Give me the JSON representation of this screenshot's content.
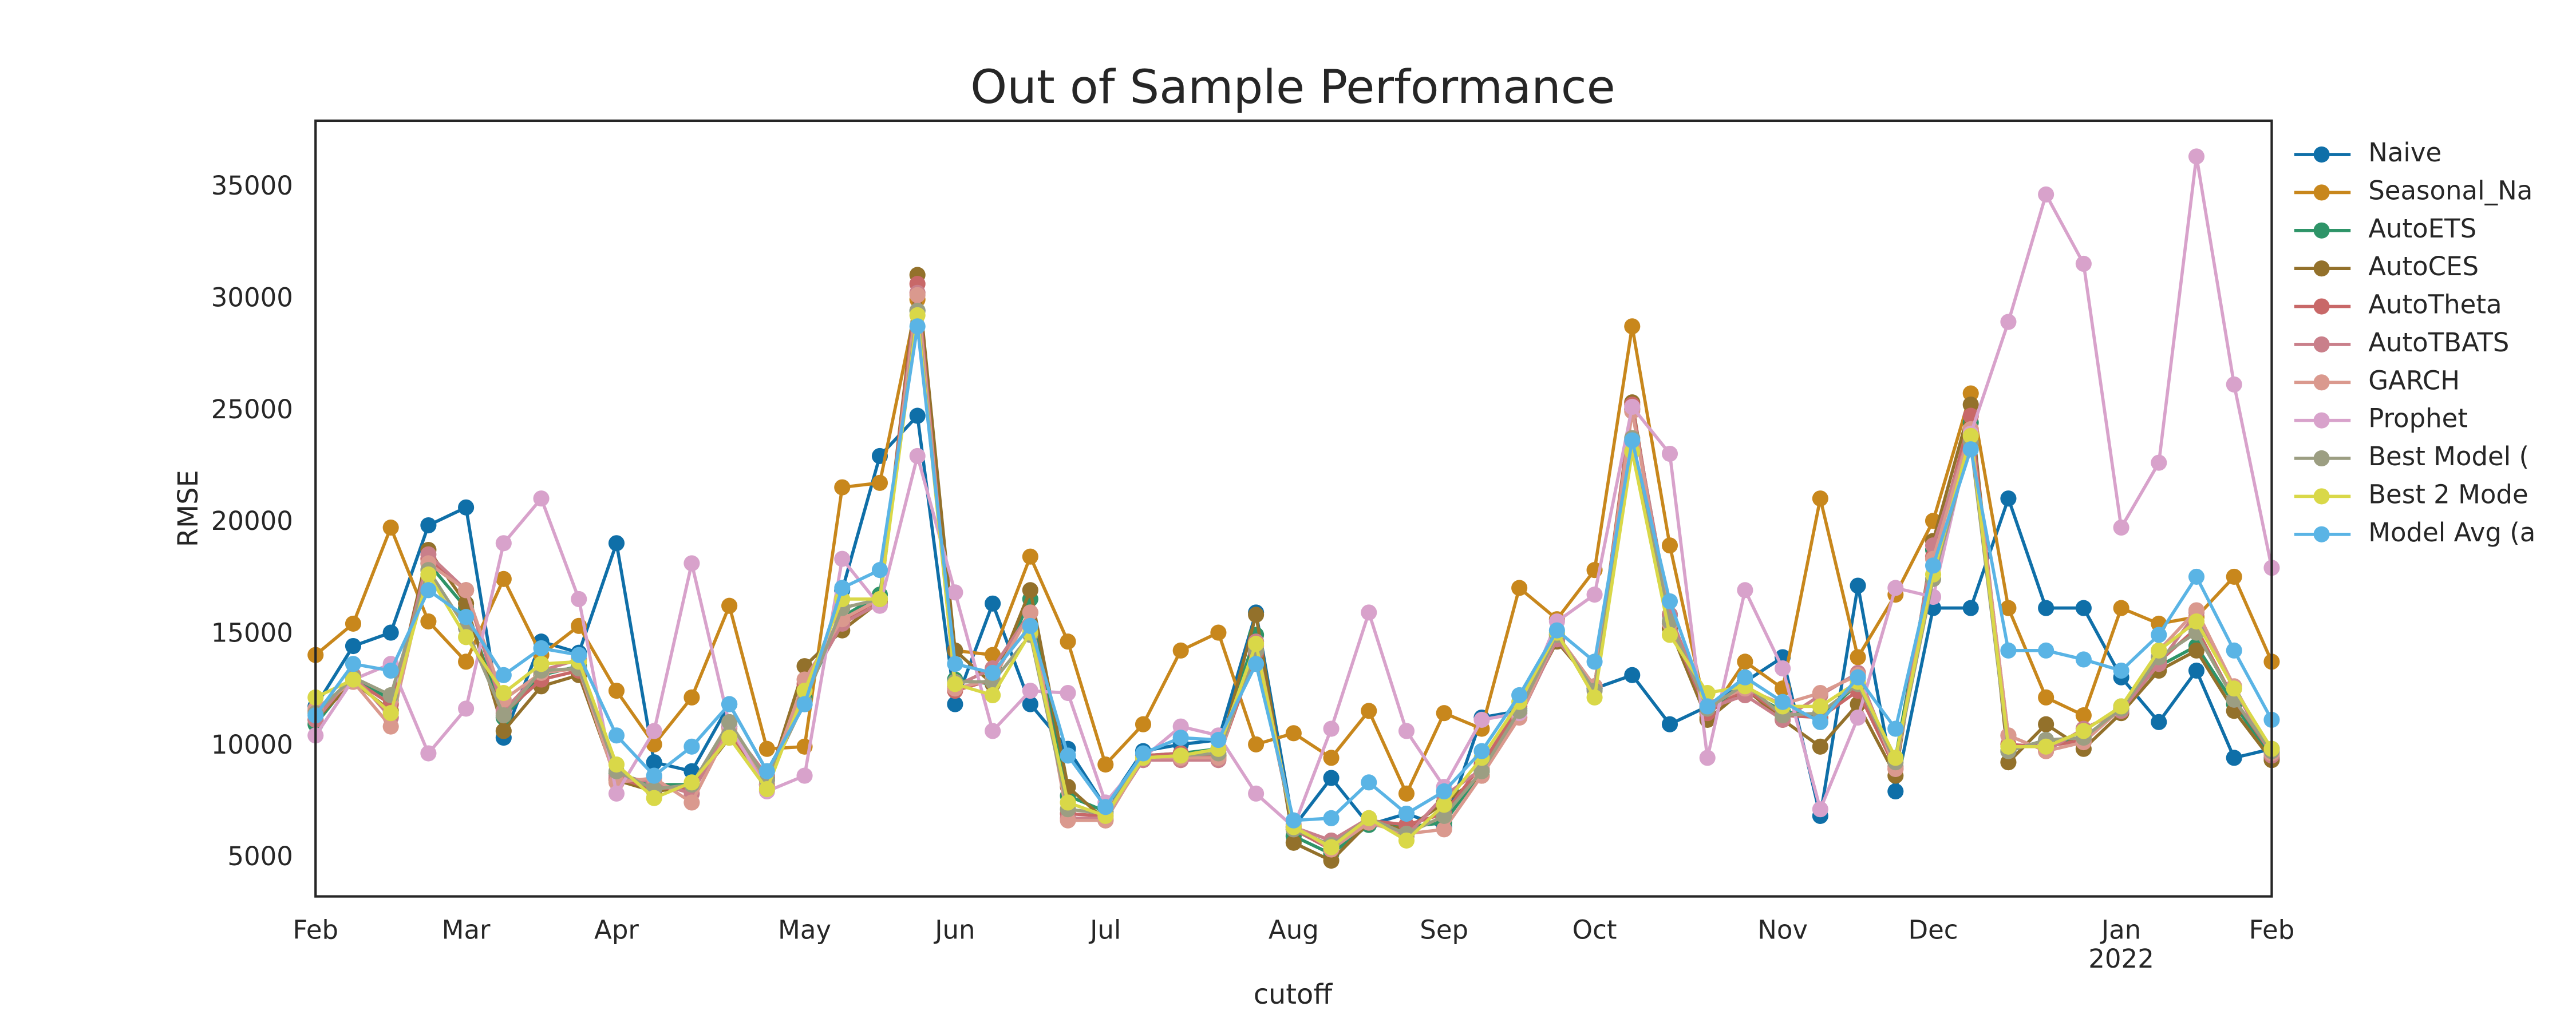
{
  "chart_data": {
    "type": "line",
    "title": "Out of Sample Performance",
    "x_label": "cutoff",
    "y_label": "RMSE",
    "categories": [
      null,
      null,
      null,
      null,
      null,
      null,
      null,
      null,
      null,
      null,
      null,
      null,
      null,
      null,
      null,
      null,
      null,
      null,
      null,
      null,
      null,
      null,
      null,
      null,
      null,
      null,
      null,
      null,
      null,
      null,
      null,
      null,
      null,
      null,
      null,
      null,
      null,
      null,
      null,
      null,
      null,
      null,
      null,
      null,
      null,
      null,
      null,
      null,
      null,
      null,
      null,
      null,
      null
    ],
    "xlim": [
      0,
      52
    ],
    "xticks": [
      {
        "value": 0,
        "label": "Feb"
      },
      {
        "value": 4,
        "label": "Mar"
      },
      {
        "value": 8,
        "label": "Apr"
      },
      {
        "value": 13,
        "label": "May"
      },
      {
        "value": 17,
        "label": "Jun"
      },
      {
        "value": 21,
        "label": "Jul"
      },
      {
        "value": 26,
        "label": "Aug"
      },
      {
        "value": 30,
        "label": "Sep"
      },
      {
        "value": 34,
        "label": "Oct"
      },
      {
        "value": 39,
        "label": "Nov"
      },
      {
        "value": 43,
        "label": "Dec"
      },
      {
        "value": 48,
        "label": "Jan"
      },
      {
        "value": 52,
        "label": "Feb"
      }
    ],
    "x_secondary_label": {
      "value": 48,
      "label": "2022"
    },
    "ylim": [
      3300,
      38000
    ],
    "yticks": [
      5000,
      10000,
      15000,
      20000,
      25000,
      30000,
      35000
    ],
    "grid": false,
    "legend": "outside-right",
    "series": [
      {
        "name": "Naive",
        "color": "#0f6fa8",
        "values": [
          11800,
          14500,
          15100,
          19900,
          20700,
          10400,
          14700,
          14200,
          19100,
          9300,
          8900,
          11900,
          8900,
          11900,
          17000,
          23000,
          24800,
          11900,
          16400,
          11900,
          9900,
          7300,
          9800,
          10100,
          10300,
          16000,
          6400,
          8600,
          6500,
          7000,
          6400,
          11300,
          11600,
          14800,
          12600,
          13200,
          11000,
          11800,
          12900,
          14000,
          6900,
          17200,
          8000,
          16200,
          16200,
          21100,
          16200,
          16200,
          13100,
          11100,
          13400,
          9500,
          9900
        ]
      },
      {
        "name": "Seasonal_Na",
        "color": "#c8871c",
        "values": [
          14100,
          15500,
          19800,
          15600,
          13800,
          17500,
          14100,
          15400,
          12500,
          10100,
          12200,
          16300,
          9900,
          10000,
          21600,
          21800,
          30000,
          14300,
          14100,
          18500,
          14700,
          9200,
          11000,
          14300,
          15100,
          10100,
          10600,
          9500,
          11600,
          7900,
          11500,
          10800,
          17100,
          15700,
          17900,
          28800,
          19000,
          11300,
          13800,
          12600,
          21100,
          14000,
          16800,
          20100,
          25800,
          16200,
          12200,
          11400,
          16200,
          15500,
          15800,
          17600,
          13800
        ]
      },
      {
        "name": "AutoETS",
        "color": "#2e9468",
        "values": [
          11000,
          13100,
          12100,
          18200,
          16200,
          11300,
          13200,
          13600,
          8800,
          8300,
          8300,
          10900,
          8600,
          12200,
          15800,
          16800,
          29500,
          13000,
          12800,
          16600,
          7800,
          7100,
          9600,
          9700,
          9900,
          15000,
          6000,
          5200,
          6500,
          6400,
          6600,
          8900,
          11700,
          14900,
          12700,
          25100,
          15900,
          11700,
          12500,
          11600,
          11300,
          12800,
          9500,
          18800,
          24500,
          9800,
          10300,
          10200,
          11800,
          13600,
          14500,
          11900,
          9500
        ]
      },
      {
        "name": "AutoCES",
        "color": "#93712b",
        "values": [
          11200,
          12900,
          11600,
          18800,
          16400,
          10700,
          12700,
          13200,
          8500,
          8000,
          8200,
          10400,
          8300,
          13600,
          15200,
          16500,
          31100,
          14300,
          12800,
          17000,
          8200,
          6700,
          9500,
          9500,
          9600,
          15900,
          5700,
          4900,
          6600,
          6300,
          7500,
          8700,
          11500,
          14700,
          12700,
          25400,
          15300,
          11200,
          12600,
          11200,
          10000,
          11900,
          8700,
          19200,
          25300,
          9300,
          11000,
          9900,
          11500,
          13400,
          14300,
          11600,
          9400
        ]
      },
      {
        "name": "AutoTheta",
        "color": "#c86868",
        "values": [
          11600,
          13000,
          11900,
          18400,
          17000,
          11500,
          13000,
          13400,
          8600,
          8100,
          8200,
          10600,
          8500,
          12800,
          15600,
          16600,
          30700,
          12500,
          13000,
          16000,
          7000,
          6900,
          9600,
          9700,
          9500,
          14200,
          6300,
          5400,
          6700,
          6500,
          7000,
          9200,
          11800,
          15000,
          12700,
          25300,
          15500,
          11500,
          12600,
          11400,
          11300,
          12500,
          9000,
          18500,
          24800,
          10100,
          10000,
          10300,
          11700,
          13800,
          15300,
          12100,
          9700
        ]
      },
      {
        "name": "AutoTBATS",
        "color": "#c97f8a",
        "values": [
          11200,
          13200,
          11300,
          18600,
          17000,
          11600,
          13400,
          13900,
          8700,
          8400,
          7900,
          10900,
          8700,
          12500,
          15500,
          16400,
          30300,
          12700,
          13500,
          16000,
          6800,
          6800,
          9400,
          9400,
          9400,
          14700,
          6400,
          5800,
          6800,
          6000,
          7800,
          9000,
          11300,
          14800,
          12700,
          25100,
          15900,
          11700,
          12300,
          11200,
          12300,
          13300,
          9100,
          19000,
          24200,
          10500,
          9800,
          10800,
          11600,
          13700,
          16000,
          12600,
          9600
        ]
      },
      {
        "name": "GARCH",
        "color": "#da998e",
        "values": [
          11700,
          12900,
          10900,
          18200,
          17000,
          12100,
          13300,
          13500,
          8400,
          8600,
          7500,
          10800,
          8300,
          13000,
          15700,
          16600,
          30200,
          12600,
          13000,
          16000,
          6700,
          6700,
          9500,
          9500,
          9500,
          14500,
          6500,
          5400,
          6600,
          6100,
          6300,
          8700,
          11300,
          15000,
          12700,
          25000,
          15500,
          11900,
          12600,
          11900,
          12400,
          13200,
          9000,
          18400,
          24200,
          10500,
          9800,
          10200,
          11700,
          14300,
          16100,
          12700,
          9700
        ]
      },
      {
        "name": "Prophet",
        "color": "#d8a2cb",
        "values": [
          10500,
          13000,
          13700,
          9700,
          11700,
          19100,
          21100,
          16600,
          7900,
          10700,
          18200,
          11000,
          8000,
          8700,
          18400,
          16300,
          23000,
          16900,
          10700,
          12500,
          12400,
          7500,
          9500,
          10900,
          10500,
          7900,
          6400,
          10800,
          16000,
          10700,
          8200,
          11200,
          11500,
          15600,
          16800,
          25200,
          23100,
          9500,
          17000,
          13500,
          7200,
          11300,
          17100,
          16700,
          24000,
          29000,
          34700,
          31600,
          19800,
          22700,
          36400,
          26200,
          18000
        ]
      },
      {
        "name": "Best Model (",
        "color": "#9c9e82",
        "values": [
          11500,
          13100,
          12300,
          17900,
          15300,
          11400,
          13400,
          13500,
          8900,
          8100,
          8300,
          11100,
          8500,
          12000,
          16200,
          16600,
          29500,
          12900,
          12900,
          15000,
          7200,
          7000,
          9500,
          9600,
          9700,
          14300,
          6300,
          5600,
          6800,
          6100,
          6900,
          8900,
          11600,
          15000,
          12500,
          23800,
          15600,
          11700,
          12800,
          11400,
          11500,
          12800,
          9300,
          17500,
          23600,
          9800,
          10300,
          10400,
          11700,
          14000,
          15100,
          12100,
          9800
        ]
      },
      {
        "name": "Best 2 Mode",
        "color": "#d9d848",
        "values": [
          12200,
          13000,
          11500,
          17700,
          14900,
          12400,
          13700,
          13800,
          9200,
          7700,
          8400,
          10400,
          8100,
          12500,
          16600,
          16600,
          29300,
          12800,
          12300,
          15100,
          7500,
          6900,
          9500,
          9600,
          9900,
          14600,
          6400,
          5500,
          6800,
          5800,
          7400,
          9500,
          12000,
          15100,
          12200,
          23200,
          15000,
          12400,
          12700,
          11800,
          11800,
          12900,
          9500,
          17700,
          23900,
          10000,
          10000,
          10700,
          11800,
          14300,
          15600,
          12600,
          9900
        ]
      },
      {
        "name": "Model Avg (a",
        "color": "#5ab4e5",
        "values": [
          11400,
          13700,
          13400,
          17000,
          15800,
          13200,
          14400,
          14100,
          10500,
          8700,
          10000,
          11900,
          8900,
          11900,
          17100,
          17900,
          28800,
          13700,
          13300,
          15400,
          9600,
          7300,
          9700,
          10400,
          10300,
          13700,
          6700,
          6800,
          8400,
          7000,
          8000,
          9800,
          12300,
          15200,
          13800,
          23700,
          16500,
          11800,
          13100,
          12000,
          11100,
          13100,
          10800,
          18100,
          23300,
          14300,
          14300,
          13900,
          13400,
          15000,
          17600,
          14300,
          11200
        ]
      }
    ]
  }
}
